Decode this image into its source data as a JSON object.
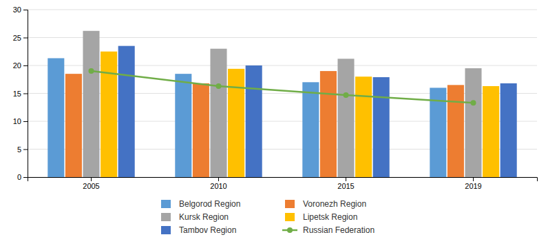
{
  "chart_data": {
    "type": "bar",
    "categories": [
      "2005",
      "2010",
      "2015",
      "2019"
    ],
    "series": [
      {
        "name": "Belgorod Region",
        "color": "#5B9BD5",
        "values": [
          21.3,
          18.5,
          17.0,
          16.0
        ]
      },
      {
        "name": "Voronezh Region",
        "color": "#ED7D31",
        "values": [
          18.5,
          16.8,
          19.0,
          16.5
        ]
      },
      {
        "name": "Kursk Region",
        "color": "#A5A5A5",
        "values": [
          26.2,
          23.0,
          21.2,
          19.5
        ]
      },
      {
        "name": "Lipetsk Region",
        "color": "#FFC000",
        "values": [
          22.5,
          19.4,
          18.0,
          16.3
        ]
      },
      {
        "name": "Tambov Region",
        "color": "#4472C4",
        "values": [
          23.5,
          20.0,
          17.9,
          16.8
        ]
      },
      {
        "name": "Russian Federation",
        "type": "line",
        "marker": "circle",
        "color": "#70AD47",
        "values": [
          19.0,
          16.3,
          14.7,
          13.3
        ]
      }
    ],
    "ylim": [
      0,
      30
    ],
    "yticks": [
      0,
      5,
      10,
      15,
      20,
      25,
      30
    ],
    "grid": true,
    "legend": "bottom"
  }
}
